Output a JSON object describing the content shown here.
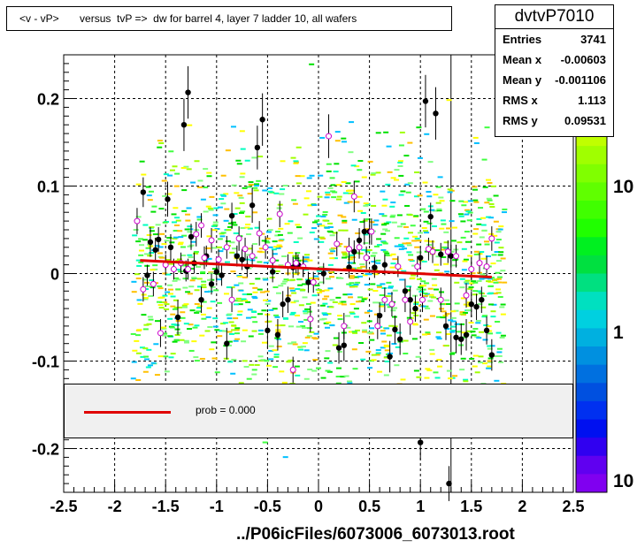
{
  "chart_data": {
    "type": "scatter",
    "title": "<v - vP>       versus  tvP =>  dw for barrel 4, layer 7 ladder 10, all wafers",
    "xlabel": "../P06icFiles/6073006_6073013.root",
    "ylabel": "",
    "xlim": [
      -2.5,
      2.5
    ],
    "ylim": [
      -0.25,
      0.25
    ],
    "x_ticks": [
      -2.5,
      -2,
      -1.5,
      -1,
      -0.5,
      0,
      0.5,
      1,
      1.5,
      2,
      2.5
    ],
    "x_tick_labels": [
      "-2.5",
      "-2",
      "-1.5",
      "-1",
      "-0.5",
      "0",
      "0.5",
      "1",
      "1.5",
      "2",
      "2.5"
    ],
    "y_ticks": [
      -0.2,
      -0.1,
      0,
      0.1,
      0.2
    ],
    "y_tick_labels": [
      "-0.2",
      "-0.1",
      "0",
      "0.1",
      "0.2"
    ],
    "grid": true,
    "colorbar_labels": [
      "10",
      "1",
      "10"
    ],
    "fit_line": {
      "x": [
        -1.75,
        1.7
      ],
      "y": [
        0.015,
        -0.004
      ],
      "color": "#e00000"
    },
    "series": [
      {
        "marker": "filled-circle",
        "color": "#000000",
        "points": [
          [
            -1.72,
            0.093,
            0.017
          ],
          [
            -1.65,
            0.036,
            0.017
          ],
          [
            -1.6,
            0.027,
            0.014
          ],
          [
            -1.57,
            0.039,
            0.014
          ],
          [
            -1.48,
            0.085,
            0.02
          ],
          [
            -1.45,
            0.03,
            0.015
          ],
          [
            -1.38,
            -0.05,
            0.02
          ],
          [
            -1.32,
            0.17,
            0.03
          ],
          [
            -1.28,
            0.207,
            0.03
          ],
          [
            -1.25,
            0.042,
            0.015
          ],
          [
            -1.22,
            0.012,
            0.012
          ],
          [
            -1.15,
            -0.03,
            0.015
          ],
          [
            -1.1,
            0.02,
            0.012
          ],
          [
            -1.05,
            -0.012,
            0.012
          ],
          [
            -1.0,
            0.002,
            0.012
          ],
          [
            -0.95,
            -0.002,
            0.012
          ],
          [
            -0.9,
            -0.08,
            0.018
          ],
          [
            -0.85,
            0.066,
            0.015
          ],
          [
            -0.8,
            0.02,
            0.012
          ],
          [
            -0.75,
            0.016,
            0.012
          ],
          [
            -0.7,
            0.008,
            0.012
          ],
          [
            -0.65,
            0.078,
            0.02
          ],
          [
            -0.6,
            0.144,
            0.025
          ],
          [
            -0.55,
            0.176,
            0.03
          ],
          [
            -0.5,
            -0.065,
            0.02
          ],
          [
            -0.45,
            0.002,
            0.012
          ],
          [
            -0.4,
            -0.07,
            0.018
          ],
          [
            -0.35,
            -0.035,
            0.015
          ],
          [
            -0.3,
            -0.03,
            0.015
          ],
          [
            -0.25,
            0.007,
            0.012
          ],
          [
            -0.2,
            0.01,
            0.012
          ],
          [
            -0.15,
            0.008,
            0.012
          ],
          [
            -0.1,
            -0.01,
            0.012
          ],
          [
            0.2,
            -0.085,
            0.018
          ],
          [
            0.25,
            -0.082,
            0.018
          ],
          [
            0.3,
            0.007,
            0.012
          ],
          [
            0.35,
            0.025,
            0.013
          ],
          [
            0.4,
            0.038,
            0.014
          ],
          [
            0.45,
            0.048,
            0.015
          ],
          [
            0.5,
            0.048,
            0.015
          ],
          [
            0.55,
            0.007,
            0.012
          ],
          [
            0.6,
            -0.048,
            0.015
          ],
          [
            0.65,
            0.01,
            0.012
          ],
          [
            0.7,
            -0.095,
            0.018
          ],
          [
            0.75,
            -0.064,
            0.016
          ],
          [
            0.8,
            -0.075,
            0.018
          ],
          [
            0.85,
            -0.02,
            0.014
          ],
          [
            0.9,
            -0.03,
            0.015
          ],
          [
            0.95,
            -0.04,
            0.015
          ],
          [
            1.0,
            0.018,
            0.013
          ],
          [
            1.05,
            0.197,
            0.03
          ],
          [
            1.1,
            0.065,
            0.016
          ],
          [
            1.15,
            0.183,
            0.03
          ],
          [
            1.2,
            0.022,
            0.013
          ],
          [
            1.25,
            -0.06,
            0.016
          ],
          [
            1.3,
            0.02,
            0.013
          ],
          [
            1.35,
            -0.073,
            0.018
          ],
          [
            1.4,
            -0.075,
            0.018
          ],
          [
            1.45,
            -0.07,
            0.018
          ],
          [
            1.5,
            -0.035,
            0.015
          ],
          [
            1.55,
            -0.038,
            0.015
          ],
          [
            1.6,
            -0.03,
            0.015
          ],
          [
            1.65,
            -0.065,
            0.016
          ],
          [
            1.7,
            -0.093,
            0.018
          ],
          [
            1.0,
            -0.193,
            0.02
          ],
          [
            1.28,
            -0.24,
            0.02
          ],
          [
            -1.68,
            -0.002,
            0.012
          ],
          [
            -1.3,
            0.003,
            0.012
          ],
          [
            0.05,
            0.0,
            0.012
          ]
        ]
      },
      {
        "marker": "open-circle",
        "color": "#cc00cc",
        "points": [
          [
            -1.78,
            0.06,
            0.015
          ],
          [
            -1.72,
            -0.018,
            0.014
          ],
          [
            -1.62,
            -0.012,
            0.014
          ],
          [
            -1.55,
            -0.068,
            0.016
          ],
          [
            -1.5,
            0.01,
            0.012
          ],
          [
            -1.42,
            0.005,
            0.012
          ],
          [
            -1.35,
            0.012,
            0.012
          ],
          [
            -1.28,
            0.005,
            0.012
          ],
          [
            -1.2,
            0.045,
            0.014
          ],
          [
            -1.12,
            0.018,
            0.013
          ],
          [
            -1.05,
            0.038,
            0.014
          ],
          [
            -0.98,
            0.016,
            0.012
          ],
          [
            -0.9,
            0.03,
            0.013
          ],
          [
            -0.85,
            -0.03,
            0.014
          ],
          [
            -0.78,
            0.04,
            0.014
          ],
          [
            -0.72,
            0.028,
            0.013
          ],
          [
            -0.65,
            0.02,
            0.013
          ],
          [
            -0.58,
            0.046,
            0.014
          ],
          [
            -0.52,
            0.03,
            0.013
          ],
          [
            -0.45,
            0.015,
            0.012
          ],
          [
            -0.38,
            0.068,
            0.015
          ],
          [
            -0.3,
            0.01,
            0.012
          ],
          [
            -0.22,
            0.012,
            0.012
          ],
          [
            -0.15,
            0.008,
            0.012
          ],
          [
            -0.08,
            -0.052,
            0.015
          ],
          [
            -0.05,
            -0.01,
            0.012
          ],
          [
            0.1,
            0.157,
            0.025
          ],
          [
            0.18,
            0.034,
            0.014
          ],
          [
            0.25,
            -0.06,
            0.015
          ],
          [
            0.3,
            0.028,
            0.013
          ],
          [
            0.35,
            0.088,
            0.018
          ],
          [
            0.4,
            0.03,
            0.013
          ],
          [
            0.47,
            0.018,
            0.013
          ],
          [
            0.52,
            0.048,
            0.015
          ],
          [
            0.58,
            -0.06,
            0.015
          ],
          [
            0.65,
            -0.03,
            0.014
          ],
          [
            0.72,
            -0.035,
            0.014
          ],
          [
            0.78,
            0.008,
            0.012
          ],
          [
            0.85,
            -0.03,
            0.014
          ],
          [
            0.9,
            -0.055,
            0.015
          ],
          [
            0.97,
            0.008,
            0.012
          ],
          [
            1.02,
            -0.03,
            0.014
          ],
          [
            1.08,
            0.028,
            0.013
          ],
          [
            1.12,
            0.025,
            0.013
          ],
          [
            1.2,
            -0.03,
            0.014
          ],
          [
            1.27,
            0.025,
            0.013
          ],
          [
            1.35,
            0.02,
            0.013
          ],
          [
            1.45,
            -0.025,
            0.014
          ],
          [
            1.5,
            0.005,
            0.012
          ],
          [
            1.58,
            0.012,
            0.012
          ],
          [
            1.65,
            0.008,
            0.012
          ],
          [
            1.7,
            0.04,
            0.014
          ],
          [
            -0.25,
            -0.11,
            0.015
          ],
          [
            -1.15,
            0.055,
            0.014
          ]
        ]
      }
    ]
  },
  "stats": {
    "title": "dvtvP7010",
    "rows": [
      {
        "label": "Entries",
        "value": "3741"
      },
      {
        "label": "Mean x",
        "value": "-0.00603"
      },
      {
        "label": "Mean y",
        "value": "-0.001106"
      },
      {
        "label": "RMS x",
        "value": "1.113"
      },
      {
        "label": "RMS y",
        "value": "0.09531"
      }
    ]
  },
  "legend": {
    "label": "prob = 0.000"
  }
}
